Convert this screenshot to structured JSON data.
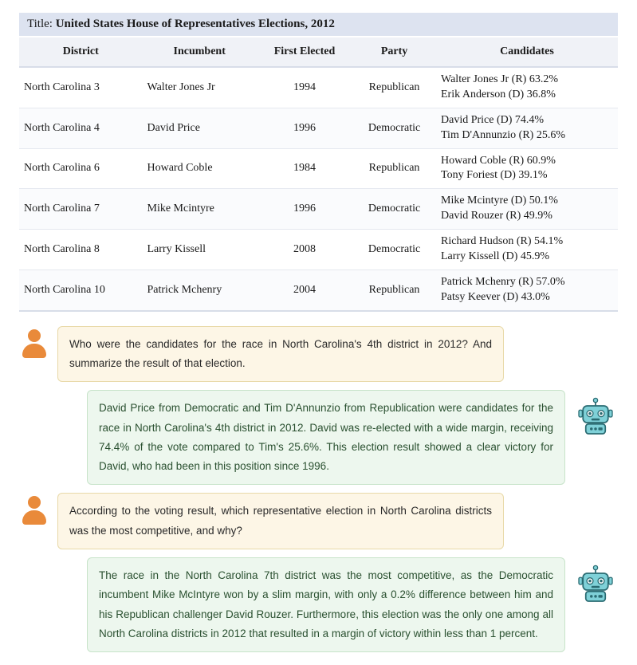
{
  "title": {
    "label": "Title: ",
    "value": "United States House of Representatives Elections, 2012"
  },
  "table": {
    "columns": [
      "District",
      "Incumbent",
      "First Elected",
      "Party",
      "Candidates"
    ],
    "rows": [
      {
        "district": "North Carolina 3",
        "incumbent": "Walter Jones Jr",
        "first_elected": "1994",
        "party": "Republican",
        "cand1": "Walter Jones Jr (R) 63.2%",
        "cand2": "Erik Anderson (D) 36.8%"
      },
      {
        "district": "North Carolina 4",
        "incumbent": "David Price",
        "first_elected": "1996",
        "party": "Democratic",
        "cand1": "David Price (D) 74.4%",
        "cand2": "Tim D'Annunzio (R) 25.6%"
      },
      {
        "district": "North Carolina 6",
        "incumbent": "Howard Coble",
        "first_elected": "1984",
        "party": "Republican",
        "cand1": "Howard Coble (R) 60.9%",
        "cand2": "Tony Foriest (D) 39.1%"
      },
      {
        "district": "North Carolina 7",
        "incumbent": "Mike Mcintyre",
        "first_elected": "1996",
        "party": "Democratic",
        "cand1": "Mike Mcintyre (D) 50.1%",
        "cand2": "David Rouzer (R) 49.9%"
      },
      {
        "district": "North Carolina 8",
        "incumbent": "Larry Kissell",
        "first_elected": "2008",
        "party": "Democratic",
        "cand1": "Richard Hudson (R) 54.1%",
        "cand2": "Larry Kissell (D) 45.9%"
      },
      {
        "district": "North Carolina 10",
        "incumbent": "Patrick Mchenry",
        "first_elected": "2004",
        "party": "Republican",
        "cand1": "Patrick Mchenry (R) 57.0%",
        "cand2": "Patsy Keever (D) 43.0%"
      }
    ]
  },
  "chat": {
    "q1": "Who were the candidates for the race in North Carolina's 4th district in 2012? And summarize the result of that election.",
    "a1": "David Price from Democratic and Tim D'Annunzio from Republication were candidates for the race in North Carolina's 4th district in 2012. David was re-elected with a wide margin, receiving 74.4% of the vote compared to Tim's 25.6%. This election result showed a clear victory for David, who had been in this position since 1996.",
    "q2": "According to the voting result, which representative election in North Carolina districts was the most competitive, and why?",
    "a2": "The race in the North Carolina 7th district was the most competitive, as the Democratic incumbent Mike McIntyre won by a slim margin, with only a 0.2% difference between him and his Republican challenger David Rouzer. Furthermore, this election was the only one among all North Carolina districts in 2012 that resulted in a margin of victory within less than 1 percent."
  },
  "colors": {
    "title_bg": "#dde3f0",
    "header_bg": "#f0f2f7",
    "user_bubble_bg": "#fdf6e6",
    "user_bubble_border": "#e8d9a8",
    "bot_bubble_bg": "#edf7ee",
    "bot_bubble_border": "#c7e3c9",
    "user_avatar": "#e98a3a",
    "bot_body": "#7fd1d8",
    "bot_stroke": "#2a6b72"
  }
}
